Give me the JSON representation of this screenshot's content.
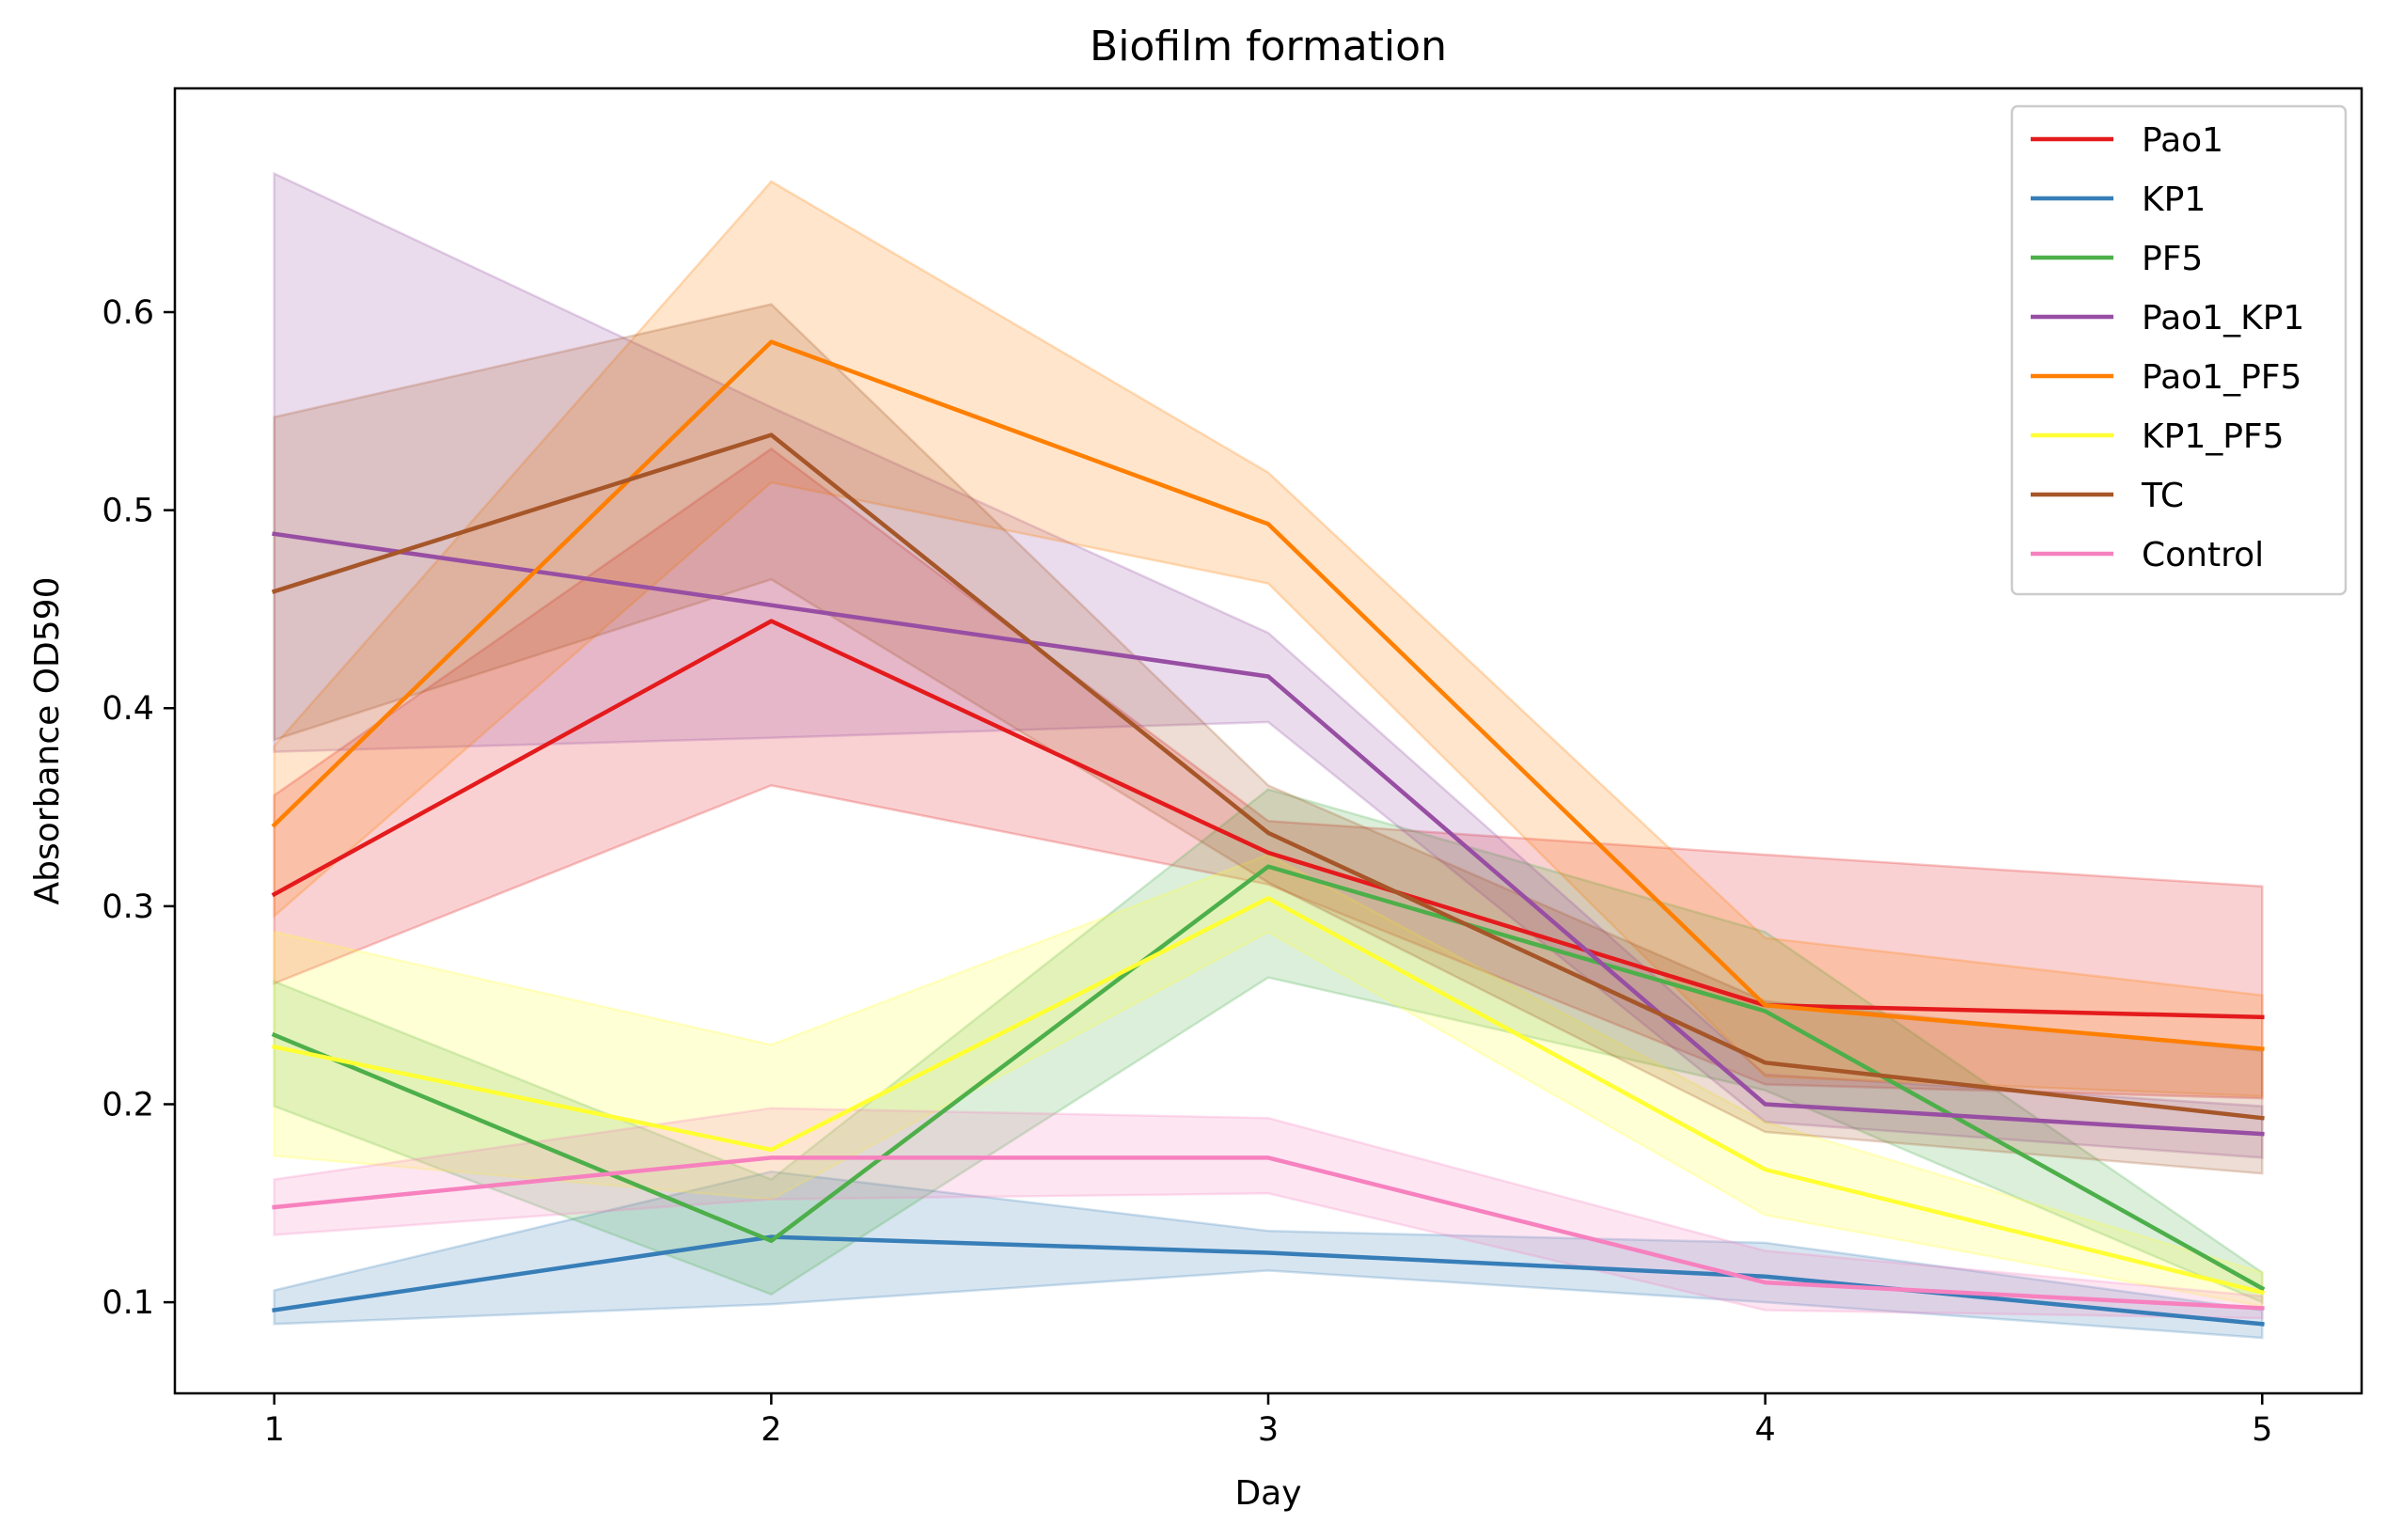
{
  "chart_data": {
    "type": "line",
    "title": "Biofilm formation",
    "xlabel": "Day",
    "ylabel": "Absorbance OD590",
    "x": [
      1,
      2,
      3,
      4,
      5
    ],
    "xticks": [
      "1",
      "2",
      "3",
      "4",
      "5"
    ],
    "yticks": [
      "0.1",
      "0.2",
      "0.3",
      "0.4",
      "0.5",
      "0.6"
    ],
    "xlim": [
      0.8,
      5.2
    ],
    "ylim": [
      0.054,
      0.713
    ],
    "grid": false,
    "legend_position": "top-right",
    "series": [
      {
        "name": "Pao1",
        "color": "#e41a1c",
        "values": [
          0.306,
          0.444,
          0.327,
          0.25,
          0.244
        ],
        "lower": [
          0.261,
          0.361,
          0.311,
          0.21,
          0.203
        ],
        "upper": [
          0.356,
          0.531,
          0.343,
          0.326,
          0.31
        ]
      },
      {
        "name": "KP1",
        "color": "#377eb8",
        "values": [
          0.096,
          0.133,
          0.125,
          0.113,
          0.089
        ],
        "lower": [
          0.089,
          0.099,
          0.116,
          0.1,
          0.082
        ],
        "upper": [
          0.106,
          0.166,
          0.136,
          0.13,
          0.096
        ]
      },
      {
        "name": "PF5",
        "color": "#4daf4a",
        "values": [
          0.235,
          0.131,
          0.32,
          0.247,
          0.107
        ],
        "lower": [
          0.199,
          0.104,
          0.264,
          0.207,
          0.1
        ],
        "upper": [
          0.262,
          0.162,
          0.359,
          0.287,
          0.115
        ]
      },
      {
        "name": "Pao1_KP1",
        "color": "#984ea3",
        "values": [
          0.488,
          0.452,
          0.416,
          0.2,
          0.185
        ],
        "lower": [
          0.378,
          0.385,
          0.393,
          0.191,
          0.173
        ],
        "upper": [
          0.67,
          0.552,
          0.438,
          0.215,
          0.199
        ]
      },
      {
        "name": "Pao1_PF5",
        "color": "#ff7f00",
        "values": [
          0.341,
          0.585,
          0.493,
          0.25,
          0.228
        ],
        "lower": [
          0.295,
          0.514,
          0.463,
          0.214,
          0.204
        ],
        "upper": [
          0.381,
          0.666,
          0.519,
          0.284,
          0.255
        ]
      },
      {
        "name": "KP1_PF5",
        "color": "#ffff33",
        "values": [
          0.229,
          0.177,
          0.304,
          0.167,
          0.105
        ],
        "lower": [
          0.174,
          0.152,
          0.287,
          0.144,
          0.098
        ],
        "upper": [
          0.287,
          0.23,
          0.326,
          0.191,
          0.115
        ]
      },
      {
        "name": "TC",
        "color": "#a65628",
        "values": [
          0.459,
          0.538,
          0.337,
          0.221,
          0.193
        ],
        "lower": [
          0.384,
          0.465,
          0.312,
          0.186,
          0.165
        ],
        "upper": [
          0.547,
          0.604,
          0.361,
          0.252,
          0.227
        ]
      },
      {
        "name": "Control",
        "color": "#f781bf",
        "values": [
          0.148,
          0.173,
          0.173,
          0.11,
          0.097
        ],
        "lower": [
          0.134,
          0.152,
          0.155,
          0.096,
          0.092
        ],
        "upper": [
          0.162,
          0.198,
          0.193,
          0.126,
          0.103
        ]
      }
    ]
  }
}
